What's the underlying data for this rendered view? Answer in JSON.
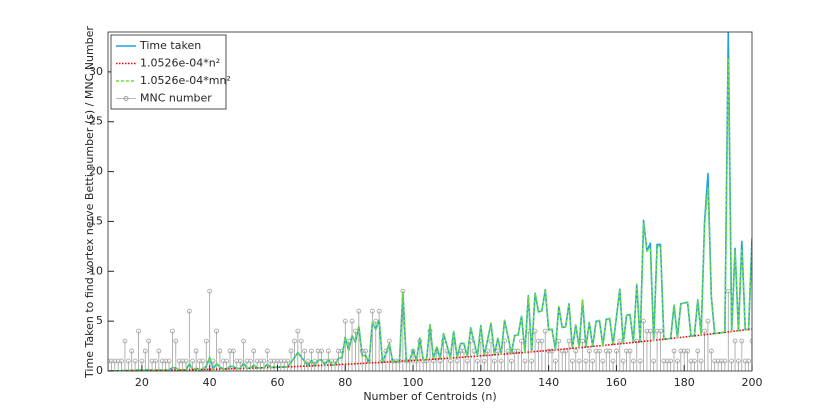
{
  "chart_data": {
    "type": "line",
    "x_label": "Number of Centroids (n)",
    "y_label": "Time Taken to find vortex nerve Betti number (s) / MNC Number",
    "xlim": [
      10,
      200
    ],
    "xticks": [
      20,
      40,
      60,
      80,
      100,
      120,
      140,
      160,
      180,
      200
    ],
    "ylim": [
      0,
      34
    ],
    "yticks": [
      0,
      5,
      10,
      15,
      20,
      25,
      30
    ],
    "legend": "top-left",
    "x": [
      10,
      11,
      12,
      13,
      14,
      15,
      16,
      17,
      18,
      19,
      20,
      21,
      22,
      23,
      24,
      25,
      26,
      27,
      28,
      29,
      30,
      31,
      32,
      33,
      34,
      35,
      36,
      37,
      38,
      39,
      40,
      41,
      42,
      43,
      44,
      45,
      46,
      47,
      48,
      49,
      50,
      51,
      52,
      53,
      54,
      55,
      56,
      57,
      58,
      59,
      60,
      61,
      62,
      63,
      64,
      65,
      66,
      67,
      68,
      69,
      70,
      71,
      72,
      73,
      74,
      75,
      76,
      77,
      78,
      79,
      80,
      81,
      82,
      83,
      84,
      85,
      86,
      87,
      88,
      89,
      90,
      91,
      92,
      93,
      94,
      95,
      96,
      97,
      98,
      99,
      100,
      101,
      102,
      103,
      104,
      105,
      106,
      107,
      108,
      109,
      110,
      111,
      112,
      113,
      114,
      115,
      116,
      117,
      118,
      119,
      120,
      121,
      122,
      123,
      124,
      125,
      126,
      127,
      128,
      129,
      130,
      131,
      132,
      133,
      134,
      135,
      136,
      137,
      138,
      139,
      140,
      141,
      142,
      143,
      144,
      145,
      146,
      147,
      148,
      149,
      150,
      151,
      152,
      153,
      154,
      155,
      156,
      157,
      158,
      159,
      160,
      161,
      162,
      163,
      164,
      165,
      166,
      167,
      168,
      169,
      170,
      171,
      172,
      173,
      174,
      175,
      176,
      177,
      178,
      179,
      180,
      181,
      182,
      183,
      184,
      185,
      186,
      187,
      188,
      189,
      190,
      191,
      192,
      193,
      194,
      195,
      196,
      197,
      198,
      199,
      200
    ],
    "series": [
      {
        "name": "Time taken",
        "color": "#1ba3e0",
        "style": "solid",
        "values": [
          0.01,
          0.01,
          0.02,
          0.02,
          0.02,
          0.07,
          0.03,
          0.06,
          0.03,
          0.15,
          0.04,
          0.09,
          0.15,
          0.06,
          0.06,
          0.13,
          0.07,
          0.08,
          0.08,
          0.36,
          0.29,
          0.1,
          0.11,
          0.12,
          0.73,
          0.13,
          0.27,
          0.14,
          0.15,
          0.48,
          1.34,
          0.18,
          0.74,
          0.39,
          0.2,
          0.21,
          0.45,
          0.47,
          0.24,
          0.25,
          0.79,
          0.27,
          0.29,
          0.59,
          0.31,
          0.32,
          0.33,
          0.68,
          0.35,
          0.37,
          0.38,
          0.39,
          0.41,
          0.42,
          0.86,
          1.34,
          1.84,
          1.42,
          0.97,
          0.5,
          1.03,
          0.53,
          1.09,
          1.12,
          0.58,
          1.18,
          0.61,
          0.62,
          1.28,
          1.31,
          3.37,
          2.07,
          3.54,
          2.9,
          4.46,
          1.52,
          1.56,
          0.8,
          4.89,
          4.17,
          5.12,
          0.87,
          1.78,
          2.73,
          0.93,
          0.95,
          0.97,
          7.92,
          1.01,
          1.03,
          2.11,
          1.07,
          3.29,
          1.12,
          1.14,
          4.64,
          1.18,
          2.41,
          1.23,
          3.75,
          2.55,
          1.3,
          3.96,
          1.34,
          2.74,
          2.78,
          1.42,
          4.32,
          2.93,
          1.49,
          4.55,
          1.54,
          3.13,
          4.78,
          1.62,
          3.29,
          1.67,
          5.09,
          3.45,
          1.75,
          3.56,
          3.61,
          5.5,
          1.86,
          7.56,
          1.92,
          7.79,
          5.93,
          6.02,
          8.14,
          4.13,
          4.19,
          2.12,
          6.46,
          4.37,
          4.43,
          6.73,
          2.28,
          4.61,
          2.34,
          7.1,
          2.4,
          4.86,
          2.46,
          4.99,
          5.06,
          2.56,
          5.19,
          5.26,
          2.66,
          5.39,
          8.19,
          2.76,
          5.59,
          5.66,
          2.87,
          8.7,
          2.94,
          15.1,
          12.02,
          12.8,
          3.08,
          12.7,
          12.7,
          3.19,
          3.22,
          3.26,
          6.6,
          3.34,
          6.75,
          6.82,
          6.9,
          3.49,
          3.53,
          7.13,
          3.6,
          14.9,
          19.8,
          7.44,
          3.76,
          3.8,
          3.84,
          3.88,
          34,
          3.96,
          12.3,
          4.04,
          13.0,
          4.13,
          4.17,
          13.3
        ]
      },
      {
        "name": "1.0526e-04*n²",
        "color": "#ff0000",
        "style": "dotted",
        "values": [
          0.011,
          0.013,
          0.015,
          0.018,
          0.021,
          0.024,
          0.027,
          0.03,
          0.034,
          0.038,
          0.042,
          0.046,
          0.051,
          0.056,
          0.061,
          0.066,
          0.071,
          0.077,
          0.083,
          0.089,
          0.095,
          0.101,
          0.108,
          0.115,
          0.122,
          0.129,
          0.136,
          0.144,
          0.152,
          0.16,
          0.168,
          0.177,
          0.186,
          0.195,
          0.204,
          0.213,
          0.223,
          0.233,
          0.243,
          0.253,
          0.263,
          0.274,
          0.285,
          0.296,
          0.307,
          0.318,
          0.33,
          0.342,
          0.354,
          0.366,
          0.379,
          0.392,
          0.405,
          0.418,
          0.431,
          0.445,
          0.459,
          0.473,
          0.487,
          0.501,
          0.516,
          0.531,
          0.546,
          0.561,
          0.576,
          0.592,
          0.608,
          0.624,
          0.64,
          0.657,
          0.674,
          0.691,
          0.708,
          0.725,
          0.743,
          0.761,
          0.779,
          0.797,
          0.815,
          0.834,
          0.853,
          0.872,
          0.891,
          0.91,
          0.93,
          0.95,
          0.97,
          0.99,
          1.011,
          1.032,
          1.053,
          1.074,
          1.095,
          1.117,
          1.139,
          1.161,
          1.183,
          1.205,
          1.228,
          1.251,
          1.274,
          1.297,
          1.32,
          1.344,
          1.368,
          1.392,
          1.416,
          1.441,
          1.466,
          1.491,
          1.516,
          1.541,
          1.567,
          1.593,
          1.619,
          1.645,
          1.671,
          1.698,
          1.725,
          1.752,
          1.779,
          1.806,
          1.834,
          1.862,
          1.89,
          1.918,
          1.947,
          1.976,
          2.005,
          2.034,
          2.063,
          2.093,
          2.123,
          2.153,
          2.183,
          2.213,
          2.244,
          2.275,
          2.306,
          2.337,
          2.368,
          2.4,
          2.432,
          2.464,
          2.496,
          2.529,
          2.562,
          2.595,
          2.628,
          2.661,
          2.695,
          2.729,
          2.763,
          2.797,
          2.831,
          2.866,
          2.901,
          2.936,
          2.971,
          3.006,
          3.042,
          3.078,
          3.114,
          3.15,
          3.187,
          3.224,
          3.261,
          3.298,
          3.335,
          3.373,
          3.411,
          3.449,
          3.487,
          3.525,
          3.564,
          3.603,
          3.642,
          3.681,
          3.721,
          3.76,
          3.8,
          3.84,
          3.881,
          3.921,
          3.962,
          4.003,
          4.044,
          4.085,
          4.127,
          4.169,
          4.211
        ]
      },
      {
        "name": "1.0526e-04*mn²",
        "color": "#6fdc3c",
        "style": "dashed",
        "values": [
          0.01,
          0.01,
          0.02,
          0.02,
          0.02,
          0.07,
          0.03,
          0.06,
          0.03,
          0.15,
          0.04,
          0.09,
          0.15,
          0.06,
          0.06,
          0.13,
          0.07,
          0.08,
          0.08,
          0.36,
          0.29,
          0.1,
          0.11,
          0.12,
          0.73,
          0.13,
          0.27,
          0.14,
          0.15,
          0.48,
          1.34,
          0.18,
          0.74,
          0.39,
          0.2,
          0.21,
          0.45,
          0.47,
          0.24,
          0.25,
          0.79,
          0.27,
          0.29,
          0.59,
          0.31,
          0.32,
          0.33,
          0.68,
          0.35,
          0.37,
          0.38,
          0.39,
          0.41,
          0.42,
          0.86,
          1.34,
          1.84,
          1.42,
          0.97,
          0.5,
          1.03,
          0.53,
          1.09,
          1.12,
          0.58,
          1.18,
          0.61,
          0.62,
          1.28,
          1.31,
          3.37,
          2.07,
          3.54,
          2.9,
          4.46,
          1.52,
          1.56,
          0.8,
          4.89,
          4.17,
          5.12,
          0.87,
          1.78,
          2.73,
          0.93,
          0.95,
          0.97,
          7.92,
          1.01,
          1.03,
          2.11,
          1.07,
          3.29,
          1.12,
          1.14,
          4.64,
          1.18,
          2.41,
          1.23,
          3.75,
          2.55,
          1.3,
          3.96,
          1.34,
          2.74,
          2.78,
          1.42,
          4.32,
          2.93,
          1.49,
          4.55,
          1.54,
          3.13,
          4.78,
          1.62,
          3.29,
          1.67,
          5.09,
          3.45,
          1.75,
          3.56,
          3.61,
          5.5,
          1.86,
          7.56,
          1.92,
          7.79,
          5.93,
          6.02,
          8.14,
          4.13,
          4.19,
          2.12,
          6.46,
          4.37,
          4.43,
          6.73,
          2.28,
          4.61,
          2.34,
          7.1,
          2.4,
          4.86,
          2.46,
          4.99,
          5.06,
          2.56,
          5.19,
          5.26,
          2.66,
          5.39,
          8.19,
          2.76,
          5.59,
          5.66,
          2.87,
          8.7,
          2.94,
          14.86,
          12.02,
          12.17,
          3.08,
          12.46,
          12.6,
          3.19,
          3.22,
          3.26,
          6.6,
          3.34,
          6.75,
          6.82,
          6.9,
          3.49,
          3.53,
          7.13,
          3.6,
          14.57,
          18.41,
          7.44,
          3.76,
          3.8,
          3.84,
          3.88,
          31.37,
          3.96,
          12.01,
          4.04,
          12.26,
          4.13,
          4.17,
          12.63
        ]
      },
      {
        "name": "MNC number",
        "color": "#a0a0a0",
        "style": "stem",
        "values": [
          1,
          1,
          1,
          1,
          1,
          3,
          1,
          2,
          1,
          4,
          1,
          2,
          3,
          1,
          1,
          2,
          1,
          1,
          1,
          4,
          3,
          1,
          1,
          1,
          6,
          1,
          2,
          1,
          1,
          3,
          8,
          1,
          4,
          2,
          1,
          1,
          2,
          2,
          1,
          1,
          3,
          1,
          1,
          2,
          1,
          1,
          1,
          2,
          1,
          1,
          1,
          1,
          1,
          1,
          2,
          3,
          4,
          3,
          2,
          1,
          2,
          1,
          2,
          2,
          1,
          2,
          1,
          1,
          2,
          2,
          5,
          3,
          5,
          4,
          6,
          2,
          2,
          1,
          6,
          5,
          6,
          1,
          2,
          3,
          1,
          1,
          1,
          8,
          1,
          1,
          2,
          1,
          3,
          1,
          1,
          4,
          1,
          2,
          1,
          3,
          2,
          1,
          3,
          1,
          2,
          2,
          1,
          3,
          2,
          1,
          3,
          1,
          2,
          3,
          1,
          2,
          1,
          3,
          2,
          1,
          2,
          2,
          3,
          1,
          4,
          1,
          4,
          3,
          3,
          4,
          2,
          2,
          1,
          3,
          2,
          2,
          3,
          1,
          2,
          1,
          3,
          1,
          2,
          1,
          2,
          2,
          1,
          2,
          2,
          1,
          2,
          3,
          1,
          2,
          2,
          1,
          3,
          1,
          5,
          4,
          4,
          1,
          4,
          4,
          1,
          1,
          1,
          2,
          1,
          2,
          2,
          2,
          1,
          1,
          2,
          1,
          4,
          5,
          2,
          1,
          1,
          1,
          1,
          8,
          1,
          3,
          1,
          3,
          1,
          1,
          3
        ]
      }
    ]
  }
}
